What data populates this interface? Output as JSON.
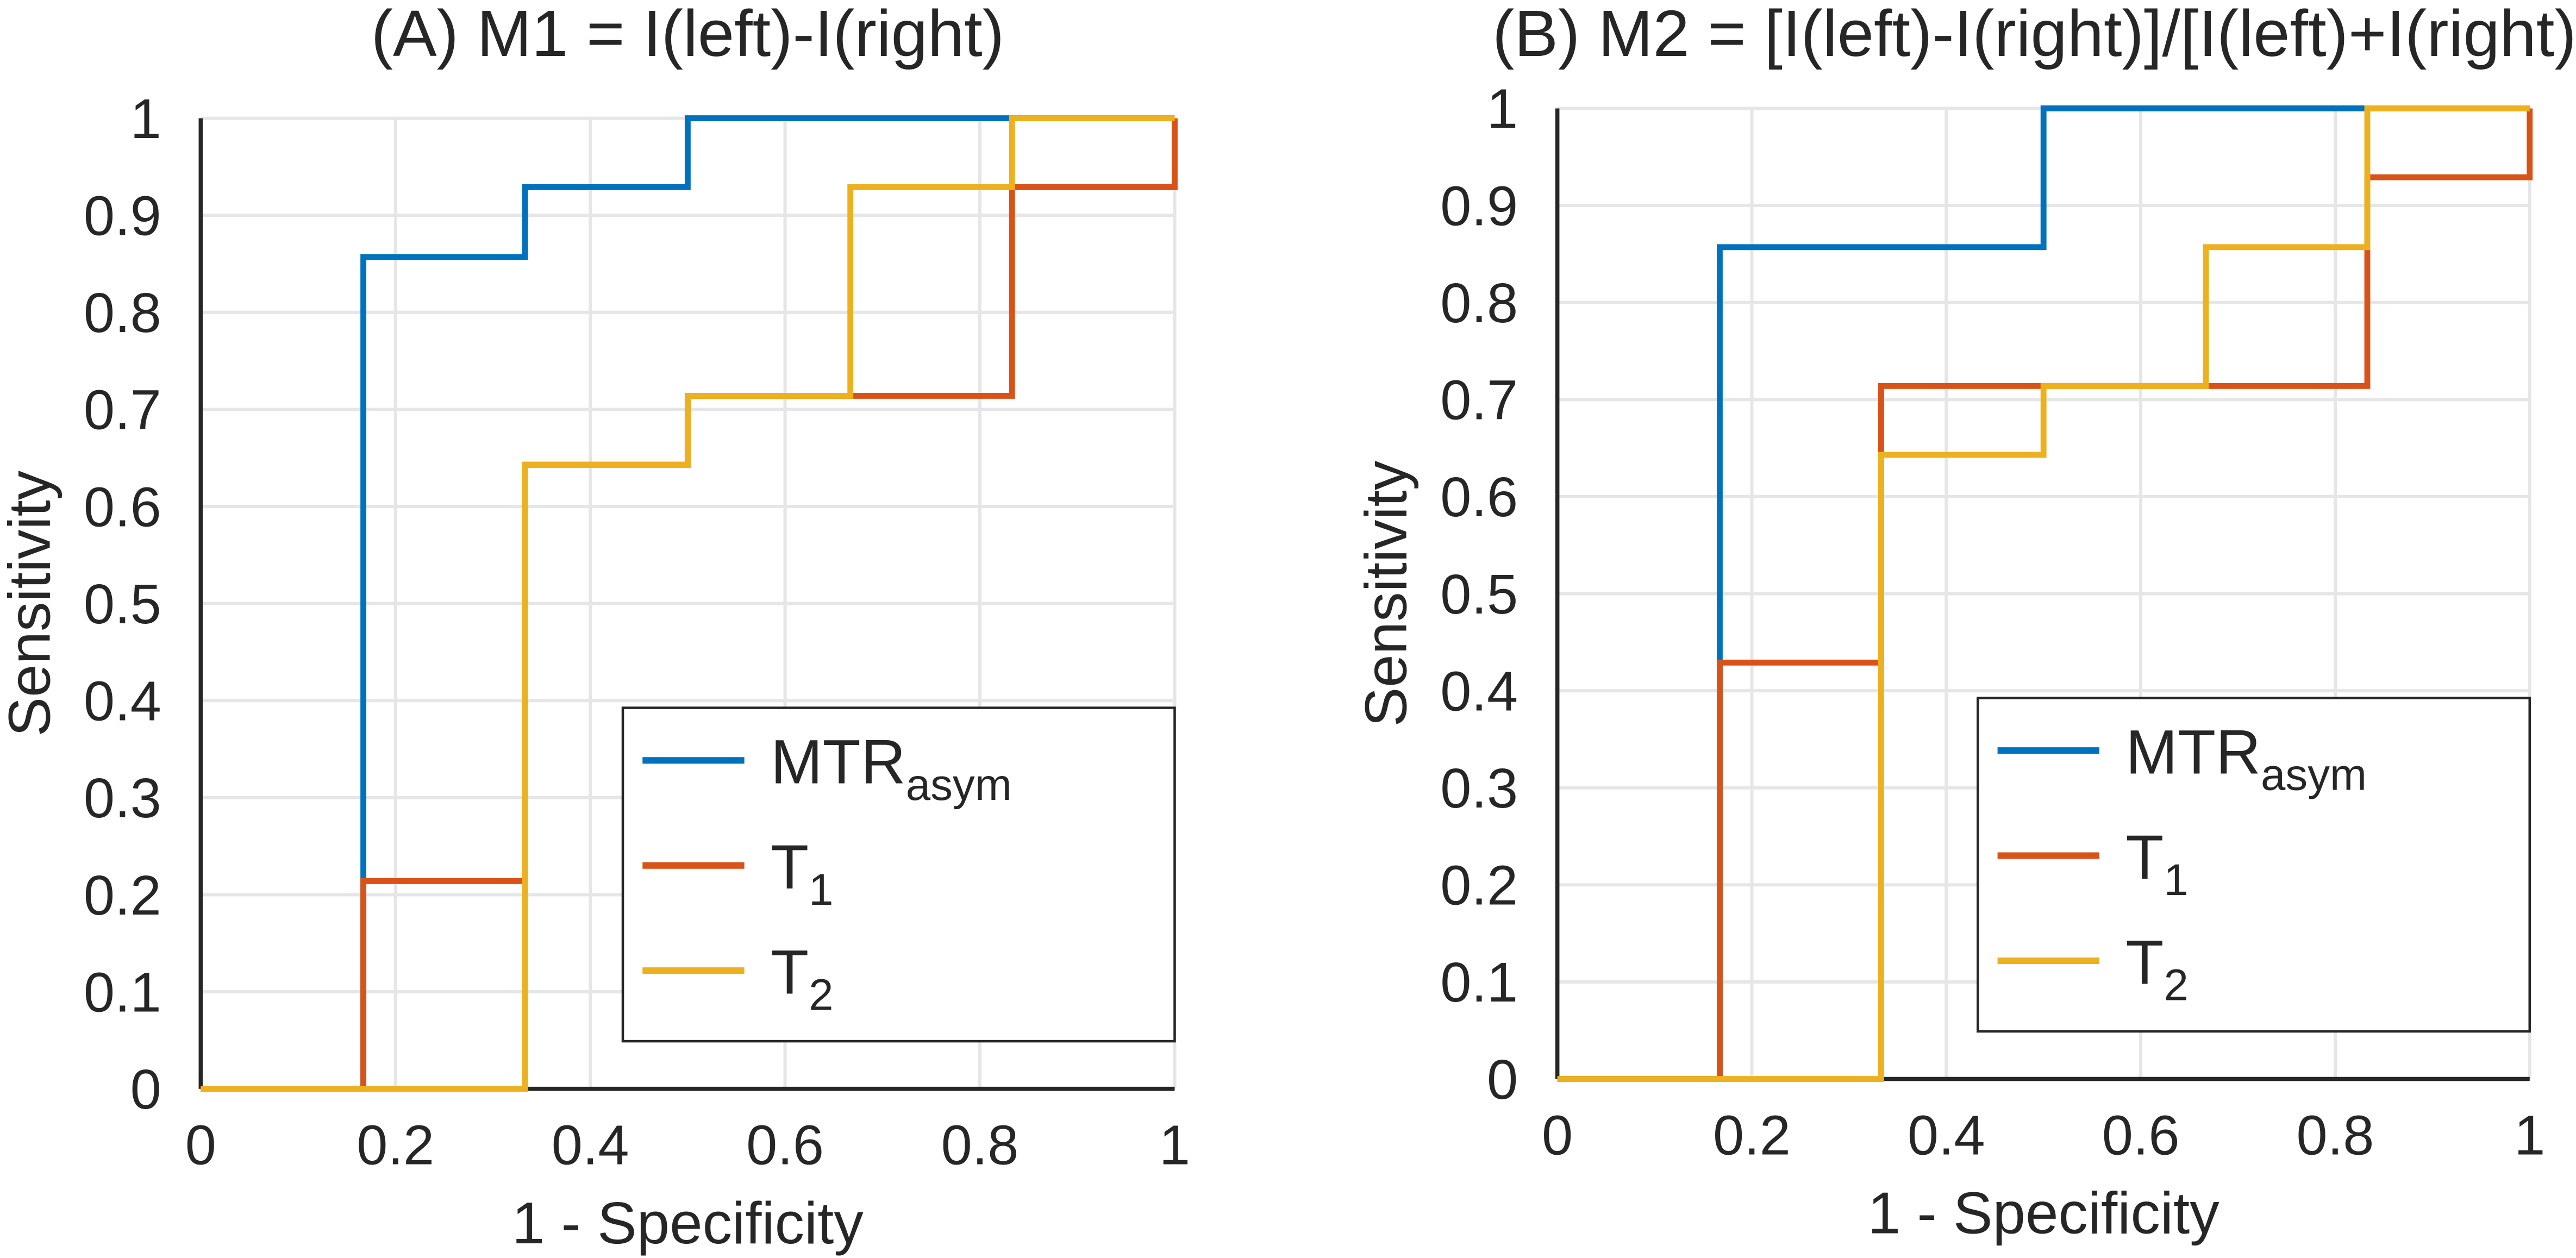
{
  "chart_data": [
    {
      "type": "line",
      "title": "(A) M1 = I(left)-I(right)",
      "xlabel": "1 - Specificity",
      "ylabel": "Sensitivity",
      "xlim": [
        0,
        1
      ],
      "ylim": [
        0,
        1
      ],
      "xticks": [
        0,
        0.2,
        0.4,
        0.6,
        0.8,
        1
      ],
      "yticks": [
        0,
        0.1,
        0.2,
        0.3,
        0.4,
        0.5,
        0.6,
        0.7,
        0.8,
        0.9,
        1
      ],
      "grid": true,
      "legend": "lower right",
      "series": [
        {
          "name": "MTRasym",
          "color": "#0072bd",
          "x": [
            0,
            0.167,
            0.167,
            0.333,
            0.333,
            0.5,
            0.5,
            1
          ],
          "values": [
            0,
            0,
            0.857,
            0.857,
            0.929,
            0.929,
            1,
            1
          ]
        },
        {
          "name": "T1",
          "color": "#d95319",
          "x": [
            0,
            0.167,
            0.167,
            0.333,
            0.333,
            0.5,
            0.5,
            0.833,
            0.833,
            1,
            1
          ],
          "values": [
            0,
            0,
            0.214,
            0.214,
            0.643,
            0.643,
            0.714,
            0.714,
            0.929,
            0.929,
            1
          ]
        },
        {
          "name": "T2",
          "color": "#edb120",
          "x": [
            0,
            0.333,
            0.333,
            0.5,
            0.5,
            0.667,
            0.667,
            0.833,
            0.833,
            1
          ],
          "values": [
            0,
            0,
            0.643,
            0.643,
            0.714,
            0.714,
            0.929,
            0.929,
            1,
            1
          ]
        }
      ]
    },
    {
      "type": "line",
      "title": "(B) M2 = [I(left)-I(right)]/[I(left)+I(right)]",
      "xlabel": "1 - Specificity",
      "ylabel": "Sensitivity",
      "xlim": [
        0,
        1
      ],
      "ylim": [
        0,
        1
      ],
      "xticks": [
        0,
        0.2,
        0.4,
        0.6,
        0.8,
        1
      ],
      "yticks": [
        0,
        0.1,
        0.2,
        0.3,
        0.4,
        0.5,
        0.6,
        0.7,
        0.8,
        0.9,
        1
      ],
      "grid": true,
      "legend": "lower right",
      "series": [
        {
          "name": "MTRasym",
          "color": "#0072bd",
          "x": [
            0,
            0.167,
            0.167,
            0.5,
            0.5,
            1
          ],
          "values": [
            0,
            0,
            0.857,
            0.857,
            1,
            1
          ]
        },
        {
          "name": "T1",
          "color": "#d95319",
          "x": [
            0,
            0.167,
            0.167,
            0.333,
            0.333,
            0.833,
            0.833,
            1,
            1
          ],
          "values": [
            0,
            0,
            0.429,
            0.429,
            0.714,
            0.714,
            0.929,
            0.929,
            1
          ]
        },
        {
          "name": "T2",
          "color": "#edb120",
          "x": [
            0,
            0.333,
            0.333,
            0.5,
            0.5,
            0.667,
            0.667,
            0.833,
            0.833,
            1
          ],
          "values": [
            0,
            0,
            0.643,
            0.643,
            0.714,
            0.714,
            0.857,
            0.857,
            1,
            1
          ]
        }
      ]
    }
  ]
}
